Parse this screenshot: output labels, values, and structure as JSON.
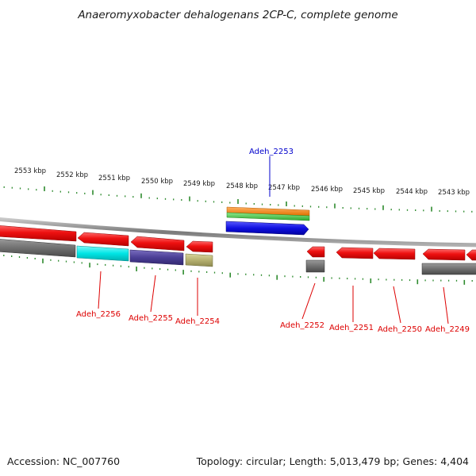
{
  "title": "Anaeromyxobacter dehalogenans 2CP-C, complete genome",
  "footer": {
    "accession": "Accession: NC_007760",
    "summary": "Topology: circular; Length: 5,013,479 bp; Genes: 4,404"
  },
  "scale": {
    "tick_labels": [
      "2553 kbp",
      "2552 kbp",
      "2551 kbp",
      "2550 kbp",
      "2549 kbp",
      "2548 kbp",
      "2547 kbp",
      "2546 kbp",
      "2545 kbp",
      "2544 kbp",
      "2543 kbp"
    ]
  },
  "gene_labels": {
    "adeh_2256": "Adeh_2256",
    "adeh_2255": "Adeh_2255",
    "adeh_2254": "Adeh_2254",
    "adeh_2253": "Adeh_2253",
    "adeh_2252": "Adeh_2252",
    "adeh_2251": "Adeh_2251",
    "adeh_2250": "Adeh_2250",
    "adeh_2249": "Adeh_2249"
  },
  "colors": {
    "gene_forward": "#dd0000",
    "gene_reverse_label": "#dd0000",
    "gene_highlight_label": "#0000cc",
    "tick": "#2e8b2e",
    "backbone": "#8c8c8c",
    "cog_cyan": "#00e5e5",
    "cog_slate": "#4b3f96",
    "cog_khaki": "#b5b070",
    "cog_gray": "#6e6e6e",
    "cog_orange": "#f07c00",
    "cog_green": "#44c044",
    "cog_blue": "#1010e0"
  }
}
